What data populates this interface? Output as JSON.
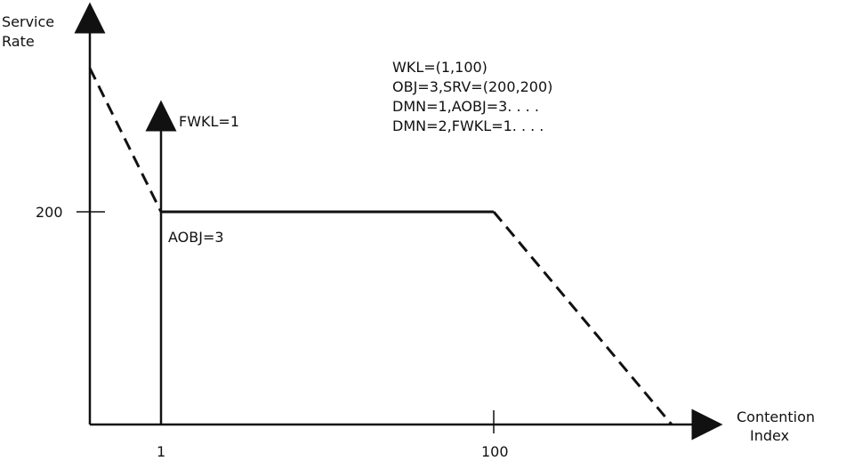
{
  "chart_data": {
    "type": "line",
    "ylabel": [
      "Service",
      "Rate"
    ],
    "xlabel": [
      "Contention",
      "Index"
    ],
    "x_ticks": [
      {
        "label": "1",
        "x": 1
      },
      {
        "label": "100",
        "x": 100
      }
    ],
    "y_ticks": [
      {
        "label": "200",
        "y": 200
      }
    ],
    "series": [
      {
        "style": "dashed",
        "points": [
          [
            0,
            335
          ],
          [
            1,
            200
          ]
        ]
      },
      {
        "style": "solid",
        "points": [
          [
            1,
            200
          ],
          [
            100,
            200
          ]
        ]
      },
      {
        "style": "dashed",
        "points": [
          [
            100,
            200
          ],
          [
            150,
            0
          ]
        ]
      }
    ],
    "marker_line": {
      "x": 1,
      "label": "FWKL=1",
      "below_label": "AOBJ=3"
    },
    "annotation_lines": [
      "WKL=(1,100)",
      "OBJ=3,SRV=(200,200)",
      "DMN=1,AOBJ=3. . . .",
      "DMN=2,FWKL=1. . . ."
    ],
    "colors": {
      "ink": "#111111",
      "background": "#ffffff"
    }
  }
}
